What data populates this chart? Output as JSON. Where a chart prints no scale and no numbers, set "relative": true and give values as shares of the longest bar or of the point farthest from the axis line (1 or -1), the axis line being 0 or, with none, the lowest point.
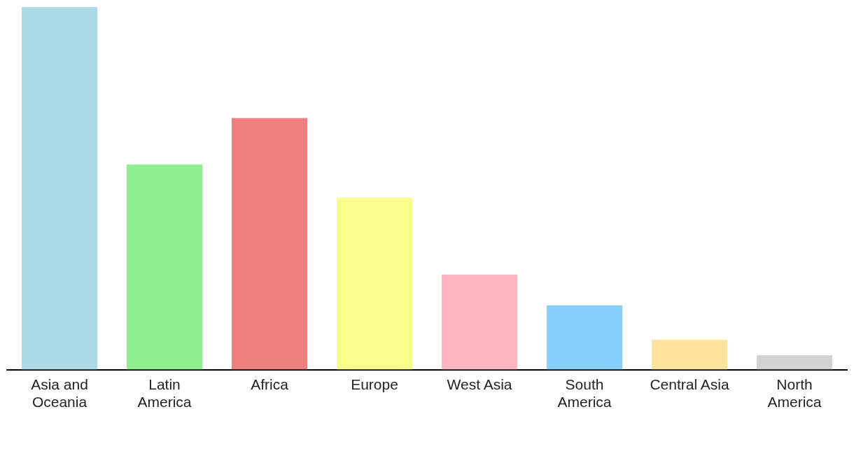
{
  "chart_data": {
    "type": "bar",
    "relative": true,
    "categories": [
      "Asia and Oceania",
      "Latin America",
      "Africa",
      "Europe",
      "West Asia",
      "South America",
      "Central Asia",
      "North America"
    ],
    "values": [
      1,
      0.566,
      0.694,
      0.474,
      0.262,
      0.177,
      0.083,
      0.04
    ],
    "colors": [
      "#add8e6",
      "#90ee90",
      "#f08080",
      "#f8fc8a",
      "#ffb6c1",
      "#87cefa",
      "#fee49c",
      "#d3d3d3"
    ],
    "grid": false,
    "legend": false
  }
}
